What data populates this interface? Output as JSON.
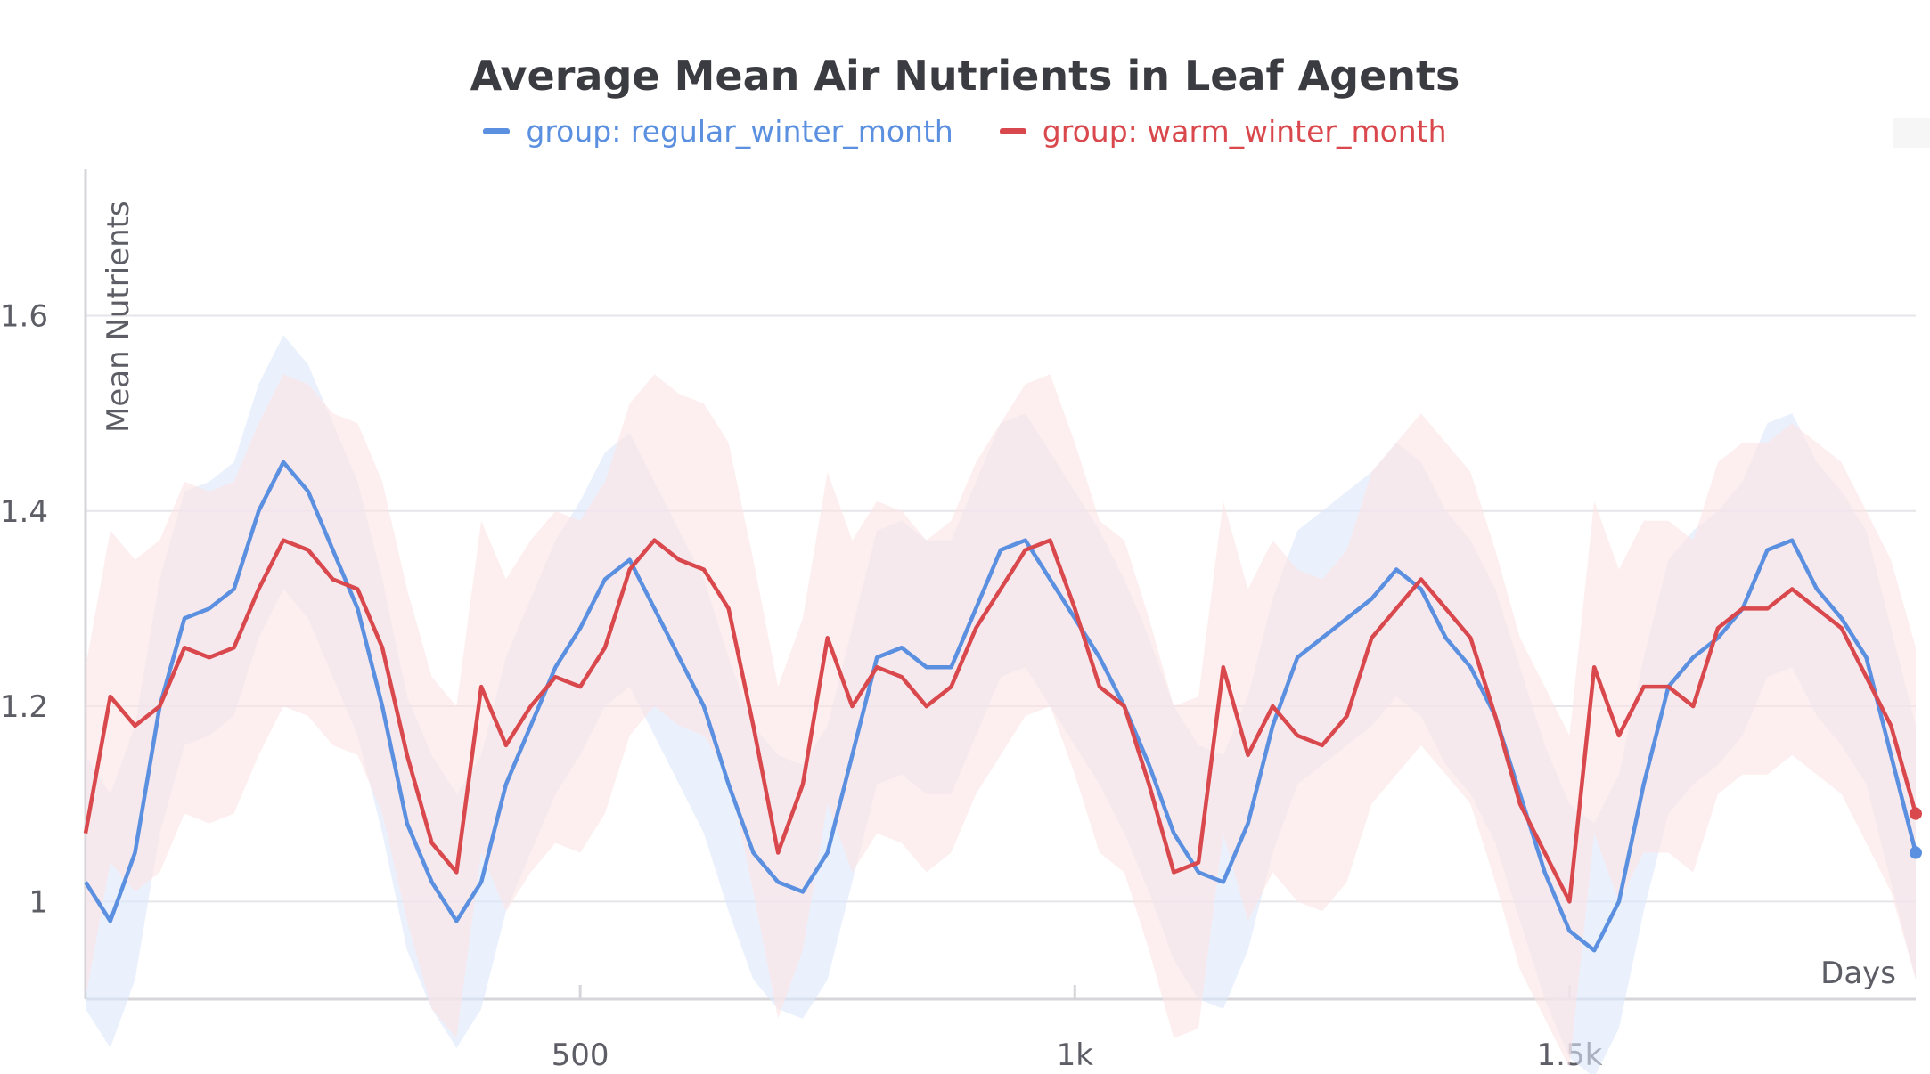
{
  "chart_data": {
    "type": "line",
    "title": "Average Mean Air Nutrients in Leaf Agents",
    "xlabel": "Days",
    "ylabel": "Mean Nutrients",
    "xlim": [
      0,
      1850
    ],
    "ylim": [
      0.9,
      1.75
    ],
    "x_ticks": [
      {
        "value": 500,
        "label": "500"
      },
      {
        "value": 1000,
        "label": "1k"
      },
      {
        "value": 1500,
        "label": "1.5k"
      }
    ],
    "y_ticks": [
      {
        "value": 1.0,
        "label": "1"
      },
      {
        "value": 1.2,
        "label": "1.2"
      },
      {
        "value": 1.4,
        "label": "1.4"
      },
      {
        "value": 1.6,
        "label": "1.6"
      }
    ],
    "grid": true,
    "legend": "top-center",
    "series": [
      {
        "name": "group: regular_winter_month",
        "color": "#5b8fe0",
        "band_color": "#dce8fb",
        "x": [
          0,
          25,
          50,
          75,
          100,
          125,
          150,
          175,
          200,
          225,
          250,
          275,
          300,
          325,
          350,
          375,
          400,
          425,
          450,
          475,
          500,
          525,
          550,
          575,
          600,
          625,
          650,
          675,
          700,
          725,
          750,
          775,
          800,
          825,
          850,
          875,
          900,
          925,
          950,
          975,
          1000,
          1025,
          1050,
          1075,
          1100,
          1125,
          1150,
          1175,
          1200,
          1225,
          1250,
          1275,
          1300,
          1325,
          1350,
          1375,
          1400,
          1425,
          1450,
          1475,
          1500,
          1525,
          1550,
          1575,
          1600,
          1625,
          1650,
          1675,
          1700,
          1725,
          1750,
          1775,
          1800,
          1825,
          1850
        ],
        "y": [
          1.02,
          0.98,
          1.05,
          1.2,
          1.29,
          1.3,
          1.32,
          1.4,
          1.45,
          1.42,
          1.36,
          1.3,
          1.2,
          1.08,
          1.02,
          0.98,
          1.02,
          1.12,
          1.18,
          1.24,
          1.28,
          1.33,
          1.35,
          1.3,
          1.25,
          1.2,
          1.12,
          1.05,
          1.02,
          1.01,
          1.05,
          1.15,
          1.25,
          1.26,
          1.24,
          1.24,
          1.3,
          1.36,
          1.37,
          1.33,
          1.29,
          1.25,
          1.2,
          1.14,
          1.07,
          1.03,
          1.02,
          1.08,
          1.18,
          1.25,
          1.27,
          1.29,
          1.31,
          1.34,
          1.32,
          1.27,
          1.24,
          1.19,
          1.11,
          1.03,
          0.97,
          0.95,
          1.0,
          1.12,
          1.22,
          1.25,
          1.27,
          1.3,
          1.36,
          1.37,
          1.32,
          1.29,
          1.25,
          1.15,
          1.05
        ],
        "band_half_width": 0.13
      },
      {
        "name": "group: warm_winter_month",
        "color": "#d9484c",
        "band_color": "#fbe4e5",
        "x": [
          0,
          25,
          50,
          75,
          100,
          125,
          150,
          175,
          200,
          225,
          250,
          275,
          300,
          325,
          350,
          375,
          400,
          425,
          450,
          475,
          500,
          525,
          550,
          575,
          600,
          625,
          650,
          675,
          700,
          725,
          750,
          775,
          800,
          825,
          850,
          875,
          900,
          925,
          950,
          975,
          1000,
          1025,
          1050,
          1075,
          1100,
          1125,
          1150,
          1175,
          1200,
          1225,
          1250,
          1275,
          1300,
          1325,
          1350,
          1375,
          1400,
          1425,
          1450,
          1475,
          1500,
          1525,
          1550,
          1575,
          1600,
          1625,
          1650,
          1675,
          1700,
          1725,
          1750,
          1775,
          1800,
          1825,
          1850
        ],
        "y": [
          1.07,
          1.21,
          1.18,
          1.2,
          1.26,
          1.25,
          1.26,
          1.32,
          1.37,
          1.36,
          1.33,
          1.32,
          1.26,
          1.15,
          1.06,
          1.03,
          1.22,
          1.16,
          1.2,
          1.23,
          1.22,
          1.26,
          1.34,
          1.37,
          1.35,
          1.34,
          1.3,
          1.18,
          1.05,
          1.12,
          1.27,
          1.2,
          1.24,
          1.23,
          1.2,
          1.22,
          1.28,
          1.32,
          1.36,
          1.37,
          1.3,
          1.22,
          1.2,
          1.12,
          1.03,
          1.04,
          1.24,
          1.15,
          1.2,
          1.17,
          1.16,
          1.19,
          1.27,
          1.3,
          1.33,
          1.3,
          1.27,
          1.19,
          1.1,
          1.05,
          1.0,
          1.24,
          1.17,
          1.22,
          1.22,
          1.2,
          1.28,
          1.3,
          1.3,
          1.32,
          1.3,
          1.28,
          1.23,
          1.18,
          1.09
        ],
        "band_half_width": 0.17
      }
    ]
  }
}
